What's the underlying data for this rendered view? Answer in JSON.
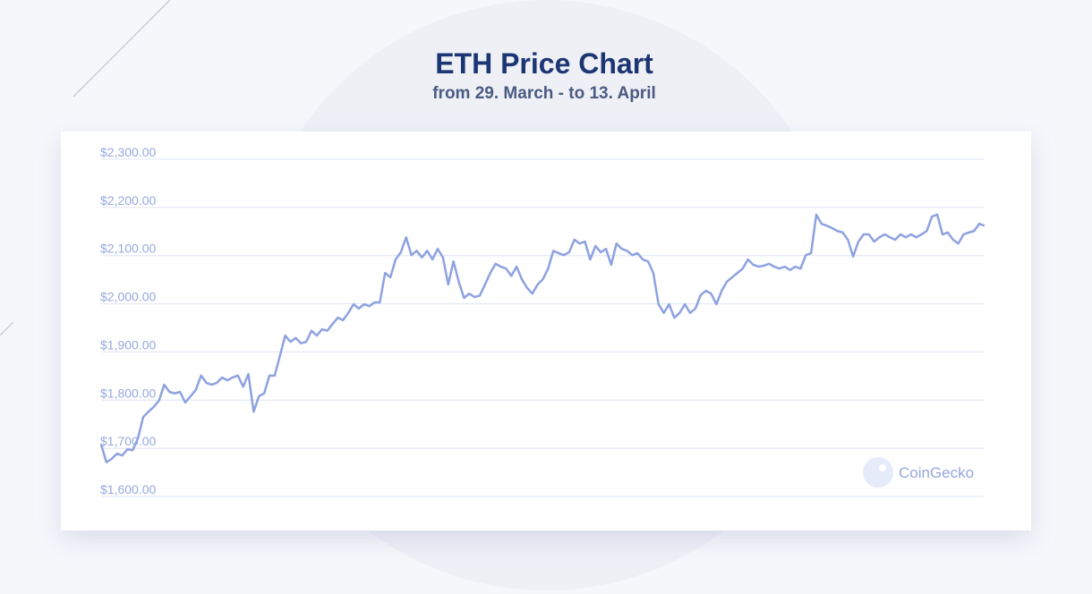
{
  "chart_data": {
    "type": "line",
    "title": "ETH Price Chart",
    "subtitle": "from 29. March - to 13. April",
    "watermark": "CoinGecko",
    "color": "#8ea2e0",
    "grid": true,
    "ylim": [
      1600,
      2300
    ],
    "yticks": [
      {
        "value": 1600,
        "label": "$1,600.00"
      },
      {
        "value": 1700,
        "label": "$1,700.00"
      },
      {
        "value": 1800,
        "label": "$1,800.00"
      },
      {
        "value": 1900,
        "label": "$1,900.00"
      },
      {
        "value": 2000,
        "label": "$2,000.00"
      },
      {
        "value": 2100,
        "label": "$2,100.00"
      },
      {
        "value": 2200,
        "label": "$2,200.00"
      },
      {
        "value": 2300,
        "label": "$2,300.00"
      }
    ],
    "values": [
      1708,
      1671,
      1678,
      1689,
      1685,
      1698,
      1696,
      1721,
      1765,
      1776,
      1786,
      1799,
      1832,
      1817,
      1814,
      1817,
      1795,
      1808,
      1821,
      1851,
      1836,
      1832,
      1836,
      1847,
      1841,
      1847,
      1851,
      1828,
      1854,
      1776,
      1808,
      1814,
      1851,
      1851,
      1892,
      1934,
      1921,
      1929,
      1918,
      1921,
      1944,
      1934,
      1947,
      1944,
      1958,
      1971,
      1966,
      1981,
      1999,
      1990,
      1999,
      1995,
      2003,
      2003,
      2064,
      2055,
      2092,
      2107,
      2138,
      2101,
      2110,
      2096,
      2110,
      2092,
      2114,
      2096,
      2040,
      2088,
      2046,
      2012,
      2021,
      2014,
      2017,
      2040,
      2064,
      2083,
      2077,
      2073,
      2058,
      2077,
      2051,
      2033,
      2021,
      2040,
      2051,
      2073,
      2110,
      2105,
      2101,
      2107,
      2133,
      2125,
      2129,
      2092,
      2120,
      2107,
      2114,
      2081,
      2125,
      2114,
      2110,
      2101,
      2105,
      2092,
      2088,
      2064,
      1999,
      1981,
      1999,
      1971,
      1981,
      1999,
      1981,
      1990,
      2018,
      2027,
      2021,
      1999,
      2027,
      2046,
      2055,
      2064,
      2073,
      2092,
      2081,
      2077,
      2079,
      2083,
      2077,
      2073,
      2077,
      2070,
      2077,
      2073,
      2101,
      2105,
      2185,
      2166,
      2162,
      2157,
      2151,
      2148,
      2133,
      2098,
      2129,
      2144,
      2144,
      2129,
      2138,
      2144,
      2138,
      2133,
      2144,
      2138,
      2144,
      2138,
      2144,
      2151,
      2181,
      2185,
      2144,
      2148,
      2133,
      2125,
      2144,
      2148,
      2151,
      2166,
      2162
    ]
  }
}
